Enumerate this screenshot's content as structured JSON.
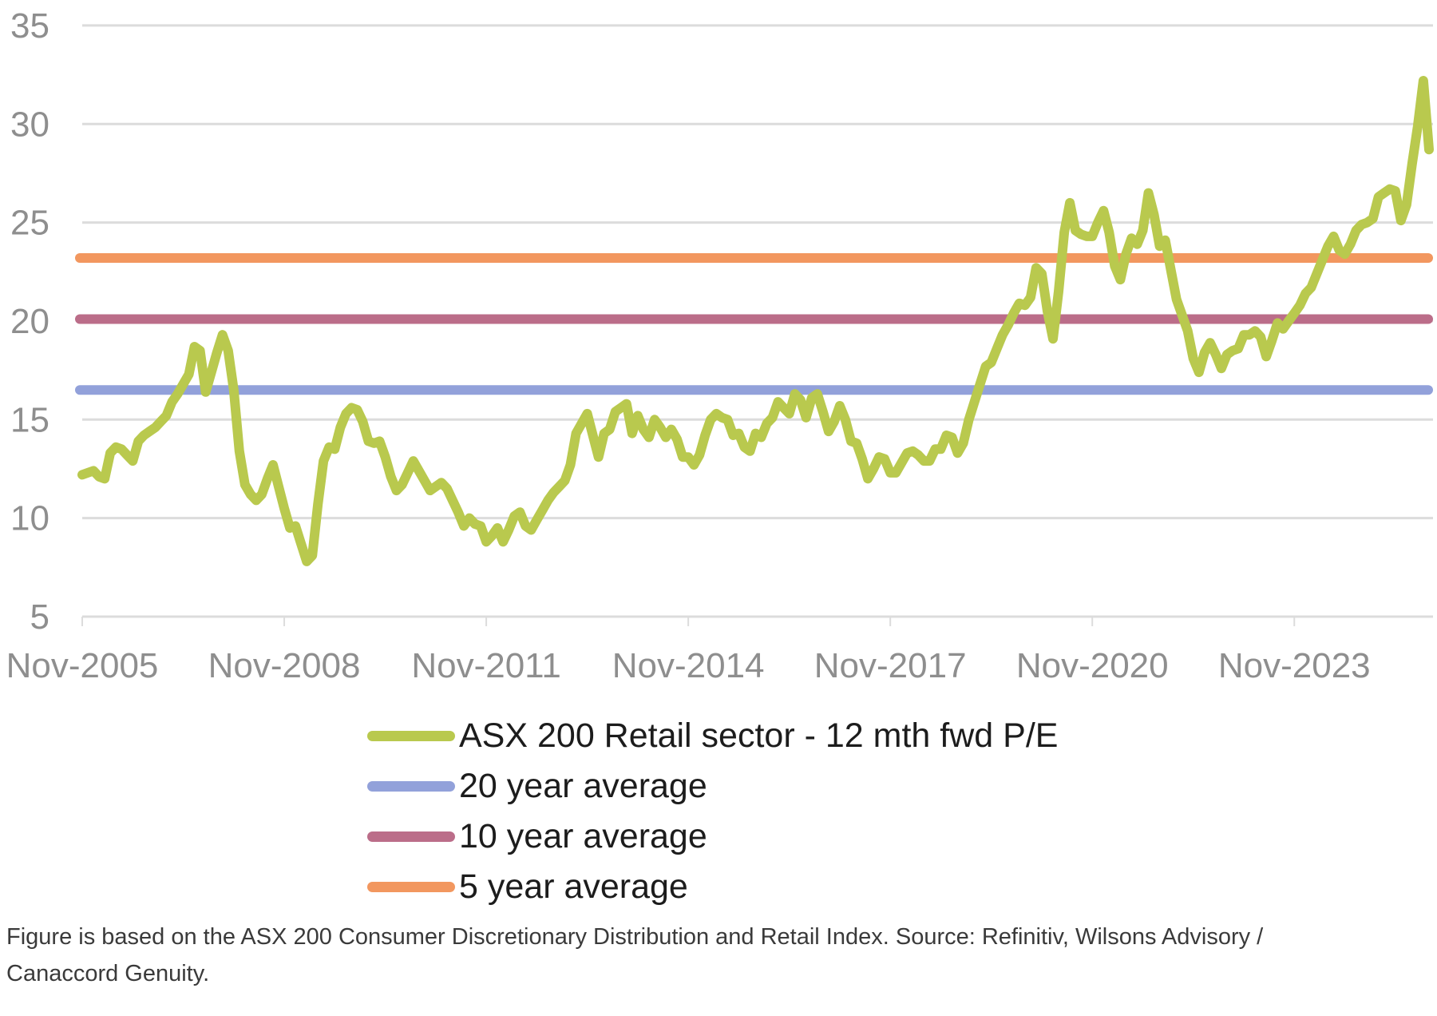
{
  "chart_data": {
    "type": "line",
    "title": "",
    "xlabel": "",
    "ylabel": "",
    "legend_position": "bottom",
    "grid": true,
    "grid_color": "#dcdcdc",
    "axis_text_color": "#8e8e8e",
    "x_axis": {
      "ticks": [
        "Nov-2005",
        "Nov-2008",
        "Nov-2011",
        "Nov-2014",
        "Nov-2017",
        "Nov-2020",
        "Nov-2023"
      ]
    },
    "y_axis": {
      "ticks": [
        5,
        10,
        15,
        20,
        25,
        30,
        35
      ],
      "range": [
        5,
        35
      ]
    },
    "series": [
      {
        "name": "ASX 200 Retail sector - 12 mth fwd P/E",
        "color": "#b9c94e",
        "points": [
          [
            "2005-11",
            12.2
          ],
          [
            "2005-12",
            12.3
          ],
          [
            "2006-01",
            12.4
          ],
          [
            "2006-02",
            12.1
          ],
          [
            "2006-03",
            12.0
          ],
          [
            "2006-04",
            13.3
          ],
          [
            "2006-05",
            13.6
          ],
          [
            "2006-06",
            13.5
          ],
          [
            "2006-07",
            13.2
          ],
          [
            "2006-08",
            12.9
          ],
          [
            "2006-09",
            13.9
          ],
          [
            "2006-10",
            14.2
          ],
          [
            "2006-11",
            14.4
          ],
          [
            "2006-12",
            14.6
          ],
          [
            "2007-01",
            14.9
          ],
          [
            "2007-02",
            15.2
          ],
          [
            "2007-03",
            15.9
          ],
          [
            "2007-04",
            16.3
          ],
          [
            "2007-05",
            16.8
          ],
          [
            "2007-06",
            17.3
          ],
          [
            "2007-07",
            18.7
          ],
          [
            "2007-08",
            18.5
          ],
          [
            "2007-09",
            16.4
          ],
          [
            "2007-10",
            17.4
          ],
          [
            "2007-11",
            18.4
          ],
          [
            "2007-12",
            19.3
          ],
          [
            "2008-01",
            18.5
          ],
          [
            "2008-02",
            16.5
          ],
          [
            "2008-03",
            13.4
          ],
          [
            "2008-04",
            11.7
          ],
          [
            "2008-05",
            11.2
          ],
          [
            "2008-06",
            10.9
          ],
          [
            "2008-07",
            11.2
          ],
          [
            "2008-08",
            12.0
          ],
          [
            "2008-09",
            12.7
          ],
          [
            "2008-10",
            11.6
          ],
          [
            "2008-11",
            10.5
          ],
          [
            "2008-12",
            9.5
          ],
          [
            "2009-01",
            9.6
          ],
          [
            "2009-02",
            8.7
          ],
          [
            "2009-03",
            7.8
          ],
          [
            "2009-04",
            8.1
          ],
          [
            "2009-05",
            10.7
          ],
          [
            "2009-06",
            12.9
          ],
          [
            "2009-07",
            13.6
          ],
          [
            "2009-08",
            13.5
          ],
          [
            "2009-09",
            14.6
          ],
          [
            "2009-10",
            15.3
          ],
          [
            "2009-11",
            15.6
          ],
          [
            "2009-12",
            15.5
          ],
          [
            "2010-01",
            14.9
          ],
          [
            "2010-02",
            13.9
          ],
          [
            "2010-03",
            13.8
          ],
          [
            "2010-04",
            13.9
          ],
          [
            "2010-05",
            13.1
          ],
          [
            "2010-06",
            12.1
          ],
          [
            "2010-07",
            11.4
          ],
          [
            "2010-08",
            11.7
          ],
          [
            "2010-09",
            12.3
          ],
          [
            "2010-10",
            12.9
          ],
          [
            "2010-11",
            12.4
          ],
          [
            "2010-12",
            11.9
          ],
          [
            "2011-01",
            11.4
          ],
          [
            "2011-02",
            11.6
          ],
          [
            "2011-03",
            11.8
          ],
          [
            "2011-04",
            11.5
          ],
          [
            "2011-05",
            10.9
          ],
          [
            "2011-06",
            10.3
          ],
          [
            "2011-07",
            9.6
          ],
          [
            "2011-08",
            10.0
          ],
          [
            "2011-09",
            9.7
          ],
          [
            "2011-10",
            9.6
          ],
          [
            "2011-11",
            8.8
          ],
          [
            "2011-12",
            9.1
          ],
          [
            "2012-01",
            9.5
          ],
          [
            "2012-02",
            8.8
          ],
          [
            "2012-03",
            9.4
          ],
          [
            "2012-04",
            10.1
          ],
          [
            "2012-05",
            10.3
          ],
          [
            "2012-06",
            9.6
          ],
          [
            "2012-07",
            9.4
          ],
          [
            "2012-08",
            9.9
          ],
          [
            "2012-09",
            10.4
          ],
          [
            "2012-10",
            10.9
          ],
          [
            "2012-11",
            11.3
          ],
          [
            "2012-12",
            11.6
          ],
          [
            "2013-01",
            11.9
          ],
          [
            "2013-02",
            12.7
          ],
          [
            "2013-03",
            14.3
          ],
          [
            "2013-04",
            14.8
          ],
          [
            "2013-05",
            15.3
          ],
          [
            "2013-06",
            14.2
          ],
          [
            "2013-07",
            13.1
          ],
          [
            "2013-08",
            14.3
          ],
          [
            "2013-09",
            14.5
          ],
          [
            "2013-10",
            15.4
          ],
          [
            "2013-11",
            15.6
          ],
          [
            "2013-12",
            15.8
          ],
          [
            "2014-01",
            14.3
          ],
          [
            "2014-02",
            15.2
          ],
          [
            "2014-03",
            14.5
          ],
          [
            "2014-04",
            14.1
          ],
          [
            "2014-05",
            15.0
          ],
          [
            "2014-06",
            14.6
          ],
          [
            "2014-07",
            14.1
          ],
          [
            "2014-08",
            14.5
          ],
          [
            "2014-09",
            14.0
          ],
          [
            "2014-10",
            13.1
          ],
          [
            "2014-11",
            13.1
          ],
          [
            "2014-12",
            12.7
          ],
          [
            "2015-01",
            13.2
          ],
          [
            "2015-02",
            14.2
          ],
          [
            "2015-03",
            15.0
          ],
          [
            "2015-04",
            15.3
          ],
          [
            "2015-05",
            15.1
          ],
          [
            "2015-06",
            15.0
          ],
          [
            "2015-07",
            14.2
          ],
          [
            "2015-08",
            14.3
          ],
          [
            "2015-09",
            13.6
          ],
          [
            "2015-10",
            13.4
          ],
          [
            "2015-11",
            14.3
          ],
          [
            "2015-12",
            14.1
          ],
          [
            "2016-01",
            14.8
          ],
          [
            "2016-02",
            15.1
          ],
          [
            "2016-03",
            15.9
          ],
          [
            "2016-04",
            15.6
          ],
          [
            "2016-05",
            15.3
          ],
          [
            "2016-06",
            16.3
          ],
          [
            "2016-07",
            16.0
          ],
          [
            "2016-08",
            15.1
          ],
          [
            "2016-09",
            16.1
          ],
          [
            "2016-10",
            16.3
          ],
          [
            "2016-11",
            15.4
          ],
          [
            "2016-12",
            14.4
          ],
          [
            "2017-01",
            14.9
          ],
          [
            "2017-02",
            15.7
          ],
          [
            "2017-03",
            15.0
          ],
          [
            "2017-04",
            13.9
          ],
          [
            "2017-05",
            13.8
          ],
          [
            "2017-06",
            13.0
          ],
          [
            "2017-07",
            12.0
          ],
          [
            "2017-08",
            12.5
          ],
          [
            "2017-09",
            13.1
          ],
          [
            "2017-10",
            13.0
          ],
          [
            "2017-11",
            12.3
          ],
          [
            "2017-12",
            12.3
          ],
          [
            "2018-01",
            12.8
          ],
          [
            "2018-02",
            13.3
          ],
          [
            "2018-03",
            13.4
          ],
          [
            "2018-04",
            13.2
          ],
          [
            "2018-05",
            12.9
          ],
          [
            "2018-06",
            12.9
          ],
          [
            "2018-07",
            13.5
          ],
          [
            "2018-08",
            13.5
          ],
          [
            "2018-09",
            14.2
          ],
          [
            "2018-10",
            14.1
          ],
          [
            "2018-11",
            13.3
          ],
          [
            "2018-12",
            13.8
          ],
          [
            "2019-01",
            15.0
          ],
          [
            "2019-02",
            15.9
          ],
          [
            "2019-03",
            16.8
          ],
          [
            "2019-04",
            17.7
          ],
          [
            "2019-05",
            17.9
          ],
          [
            "2019-06",
            18.6
          ],
          [
            "2019-07",
            19.3
          ],
          [
            "2019-08",
            19.8
          ],
          [
            "2019-09",
            20.4
          ],
          [
            "2019-10",
            20.9
          ],
          [
            "2019-11",
            20.8
          ],
          [
            "2019-12",
            21.2
          ],
          [
            "2020-01",
            22.7
          ],
          [
            "2020-02",
            22.4
          ],
          [
            "2020-03",
            20.5
          ],
          [
            "2020-04",
            19.1
          ],
          [
            "2020-05",
            21.5
          ],
          [
            "2020-06",
            24.5
          ],
          [
            "2020-07",
            26.0
          ],
          [
            "2020-08",
            24.6
          ],
          [
            "2020-09",
            24.4
          ],
          [
            "2020-10",
            24.3
          ],
          [
            "2020-11",
            24.3
          ],
          [
            "2020-12",
            25.0
          ],
          [
            "2021-01",
            25.6
          ],
          [
            "2021-02",
            24.5
          ],
          [
            "2021-03",
            22.8
          ],
          [
            "2021-04",
            22.1
          ],
          [
            "2021-05",
            23.4
          ],
          [
            "2021-06",
            24.2
          ],
          [
            "2021-07",
            23.9
          ],
          [
            "2021-08",
            24.6
          ],
          [
            "2021-09",
            26.5
          ],
          [
            "2021-10",
            25.4
          ],
          [
            "2021-11",
            23.8
          ],
          [
            "2021-12",
            24.1
          ],
          [
            "2022-01",
            22.6
          ],
          [
            "2022-02",
            21.1
          ],
          [
            "2022-03",
            20.3
          ],
          [
            "2022-04",
            19.5
          ],
          [
            "2022-05",
            18.1
          ],
          [
            "2022-06",
            17.4
          ],
          [
            "2022-07",
            18.4
          ],
          [
            "2022-08",
            18.9
          ],
          [
            "2022-09",
            18.3
          ],
          [
            "2022-10",
            17.6
          ],
          [
            "2022-11",
            18.3
          ],
          [
            "2022-12",
            18.5
          ],
          [
            "2023-01",
            18.6
          ],
          [
            "2023-02",
            19.3
          ],
          [
            "2023-03",
            19.3
          ],
          [
            "2023-04",
            19.5
          ],
          [
            "2023-05",
            19.2
          ],
          [
            "2023-06",
            18.2
          ],
          [
            "2023-07",
            19.0
          ],
          [
            "2023-08",
            19.9
          ],
          [
            "2023-09",
            19.6
          ],
          [
            "2023-10",
            20.0
          ],
          [
            "2023-11",
            20.4
          ],
          [
            "2023-12",
            20.8
          ],
          [
            "2024-01",
            21.4
          ],
          [
            "2024-02",
            21.7
          ],
          [
            "2024-03",
            22.4
          ],
          [
            "2024-04",
            23.1
          ],
          [
            "2024-05",
            23.8
          ],
          [
            "2024-06",
            24.3
          ],
          [
            "2024-07",
            23.6
          ],
          [
            "2024-08",
            23.4
          ],
          [
            "2024-09",
            23.9
          ],
          [
            "2024-10",
            24.6
          ],
          [
            "2024-11",
            24.9
          ],
          [
            "2024-12",
            25.0
          ],
          [
            "2025-01",
            25.2
          ],
          [
            "2025-02",
            26.3
          ],
          [
            "2025-03",
            26.5
          ],
          [
            "2025-04",
            26.7
          ],
          [
            "2025-05",
            26.6
          ],
          [
            "2025-06",
            25.1
          ],
          [
            "2025-07",
            25.9
          ],
          [
            "2025-08",
            28.0
          ],
          [
            "2025-09",
            29.9
          ],
          [
            "2025-10",
            32.2
          ],
          [
            "2025-11",
            28.7
          ]
        ]
      },
      {
        "name": "20 year average",
        "color": "#92a1da",
        "value": 16.5
      },
      {
        "name": "10 year average",
        "color": "#bb6d89",
        "value": 20.1
      },
      {
        "name": "5 year average",
        "color": "#f2975f",
        "value": 23.2
      }
    ]
  },
  "footer": {
    "line1": "Figure is based on the ASX 200 Consumer Discretionary Distribution and Retail Index. Source: Refinitiv, Wilsons Advisory /",
    "line2": "Canaccord Genuity."
  }
}
